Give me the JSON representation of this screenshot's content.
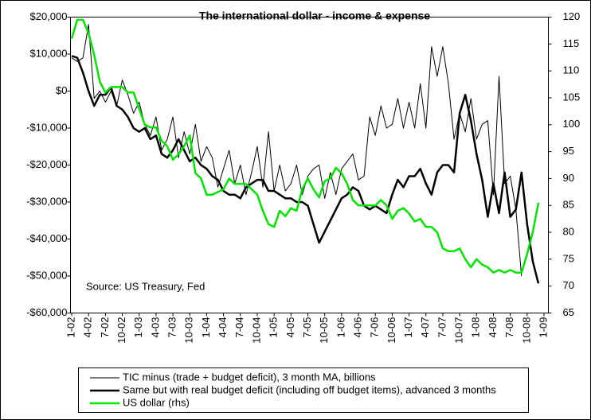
{
  "chart_data": {
    "type": "line",
    "title": "The international dollar - income & expense",
    "annotation": "Source: US Treasury, Fed",
    "categories": [
      "1-02",
      null,
      null,
      "4-02",
      null,
      null,
      "7-02",
      null,
      null,
      "10-02",
      null,
      null,
      "1-03",
      null,
      null,
      "4-03",
      null,
      null,
      "7-03",
      null,
      null,
      "10-03",
      null,
      null,
      "1-04",
      null,
      null,
      "4-04",
      null,
      null,
      "7-04",
      null,
      null,
      "10-04",
      null,
      null,
      "1-05",
      null,
      null,
      "4-05",
      null,
      null,
      "7-05",
      null,
      null,
      "10-05",
      null,
      null,
      "1-06",
      null,
      null,
      "4-06",
      null,
      null,
      "7-06",
      null,
      null,
      "10-06",
      null,
      null,
      "1-07",
      null,
      null,
      "4-07",
      null,
      null,
      "7-07",
      null,
      null,
      "10-07",
      null,
      null,
      "1-08",
      null,
      null,
      "4-08",
      null,
      null,
      "7-08",
      null,
      null,
      "10-08",
      null,
      null,
      "1-09"
    ],
    "series": [
      {
        "name": "TIC minus (trade + budget deficit), 3 month MA, billions",
        "color": "#000000",
        "width": 1,
        "values": [
          9000,
          8000,
          9000,
          18000,
          -2000,
          0,
          -3000,
          0,
          -4000,
          3000,
          -1000,
          -6000,
          -3000,
          -9000,
          -12000,
          -7000,
          -16000,
          -13000,
          -7000,
          -18000,
          -11000,
          -17000,
          -9000,
          -19000,
          -15000,
          -18000,
          -26000,
          -21000,
          -16000,
          -25000,
          -20000,
          -28000,
          -22000,
          -15000,
          -26000,
          -11000,
          -27000,
          -20000,
          -27000,
          -25000,
          -20000,
          -28000,
          -23000,
          -21000,
          -20000,
          -29000,
          -22000,
          -28000,
          -21000,
          -19000,
          -17000,
          -24000,
          -23000,
          -7000,
          -12000,
          -4000,
          -10000,
          -9000,
          -2000,
          -10000,
          -3000,
          -10000,
          2000,
          -10000,
          12000,
          4000,
          12000,
          2000,
          -13000,
          -6000,
          -11000,
          -2000,
          -13000,
          -9000,
          -8000,
          -28000,
          4000,
          -25000,
          -23000,
          -32000,
          -50000,
          null,
          null,
          null,
          null
        ]
      },
      {
        "name": "Same but with real budget deficit (including off budget items), advanced 3 months",
        "color": "#000000",
        "width": 2.5,
        "values": [
          9500,
          9000,
          5000,
          0,
          -4000,
          -1000,
          -1000,
          1000,
          -4000,
          -5000,
          -7000,
          -10000,
          -11000,
          -10000,
          -13000,
          -12000,
          -17000,
          -18000,
          -16000,
          -13000,
          -16000,
          -19000,
          -18000,
          -20000,
          -21000,
          -23000,
          -24000,
          -27000,
          -28000,
          -28000,
          -29000,
          -26000,
          -25000,
          -24000,
          -24000,
          -27000,
          -27000,
          -28000,
          -29000,
          -29000,
          -30000,
          -30000,
          -31000,
          -36000,
          -41000,
          -38000,
          -35000,
          -32000,
          -29000,
          -28000,
          -26000,
          -27000,
          -31000,
          -32000,
          -31000,
          -32000,
          -33000,
          -28000,
          -24000,
          -26000,
          -23000,
          -23000,
          -21000,
          -25000,
          -28000,
          -22000,
          -20000,
          -20000,
          -22000,
          -6000,
          -1000,
          -8000,
          -17000,
          -24000,
          -34000,
          -25000,
          -33000,
          -22000,
          -34000,
          -32000,
          -22000,
          -36000,
          -46000,
          -52000,
          null
        ]
      },
      {
        "name": "US dollar (rhs)",
        "color": "#00e600",
        "width": 2.5,
        "axis": "y2",
        "values": [
          116,
          119.5,
          119.5,
          117,
          113,
          108,
          106,
          107,
          107,
          107,
          106,
          106,
          103,
          100,
          99.5,
          99.5,
          97,
          96,
          93.5,
          94.5,
          96,
          98,
          91,
          90,
          87,
          87,
          87.5,
          88,
          90,
          89,
          89,
          89,
          88,
          87,
          84,
          81.5,
          81,
          84,
          83,
          84.5,
          84,
          88,
          90,
          88,
          86.5,
          89.5,
          90,
          92,
          91,
          89,
          86,
          85,
          85,
          85,
          85,
          86,
          85,
          82.5,
          84,
          84.5,
          83.5,
          82,
          82.5,
          81,
          81,
          80,
          77,
          76.5,
          76.5,
          77,
          75,
          73.5,
          75,
          74,
          73.5,
          72.5,
          73,
          72.5,
          73,
          72.5,
          72.5,
          76,
          80,
          85.5,
          null
        ]
      }
    ],
    "ylim": [
      -60000,
      20000
    ],
    "yticks": [
      {
        "value": -60000,
        "label": "-$60,000"
      },
      {
        "value": -50000,
        "label": "-$50,000"
      },
      {
        "value": -40000,
        "label": "-$40,000"
      },
      {
        "value": -30000,
        "label": "-$30,000"
      },
      {
        "value": -20000,
        "label": "-$20,000"
      },
      {
        "value": -10000,
        "label": "-$10,000"
      },
      {
        "value": 0,
        "label": "$0"
      },
      {
        "value": 10000,
        "label": "$10,000"
      },
      {
        "value": 20000,
        "label": "$20,000"
      }
    ],
    "y2lim": [
      65,
      120
    ],
    "y2ticks": [
      65,
      70,
      75,
      80,
      85,
      90,
      95,
      100,
      105,
      110,
      115,
      120
    ],
    "grid": false,
    "legend": "bottom"
  }
}
